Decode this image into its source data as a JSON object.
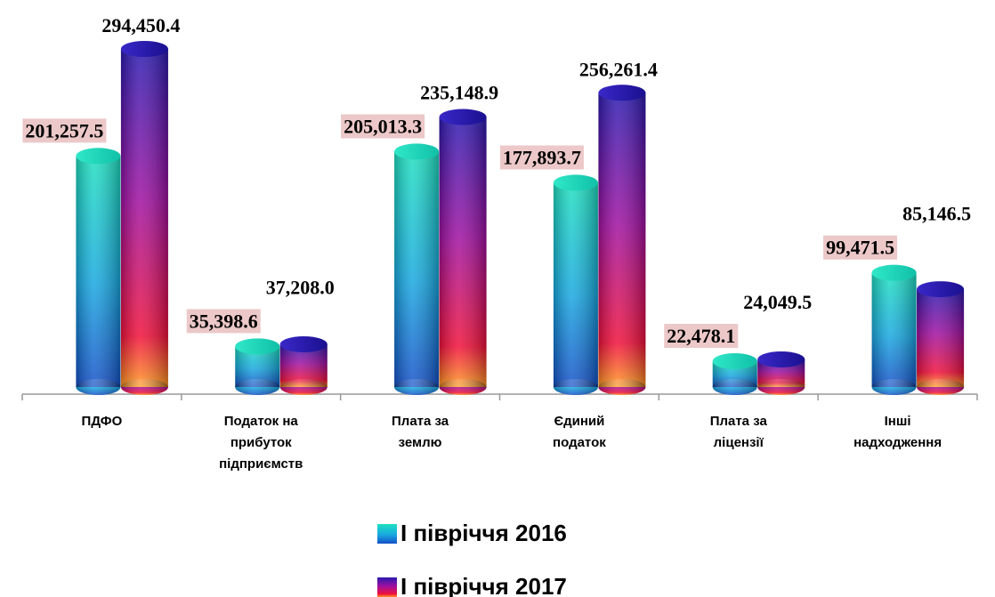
{
  "chart_data": {
    "type": "bar3d",
    "categories": [
      "ПДФО",
      "Податок на прибуток підприємств",
      "Плата за землю",
      "Єдиний податок",
      "Плата за ліцензії",
      "Інші надходження"
    ],
    "series": [
      {
        "name": "І півріччя 2016",
        "color": "#1a9fd8",
        "values": [
          201257.5,
          35398.6,
          205013.3,
          177893.7,
          22478.1,
          99471.5
        ],
        "value_labels": [
          "201,257.5",
          "35,398.6",
          "205,013.3",
          "177,893.7",
          "22,478.1",
          "99,471.5"
        ]
      },
      {
        "name": "І півріччя 2017",
        "color": "#8a1aa8",
        "values": [
          294450.4,
          37208.0,
          235148.9,
          256261.4,
          24049.5,
          85146.5
        ],
        "value_labels": [
          "294,450.4",
          "37,208.0",
          "235,148.9",
          "256,261.4",
          "24,049.5",
          "85,146.5"
        ]
      }
    ]
  }
}
